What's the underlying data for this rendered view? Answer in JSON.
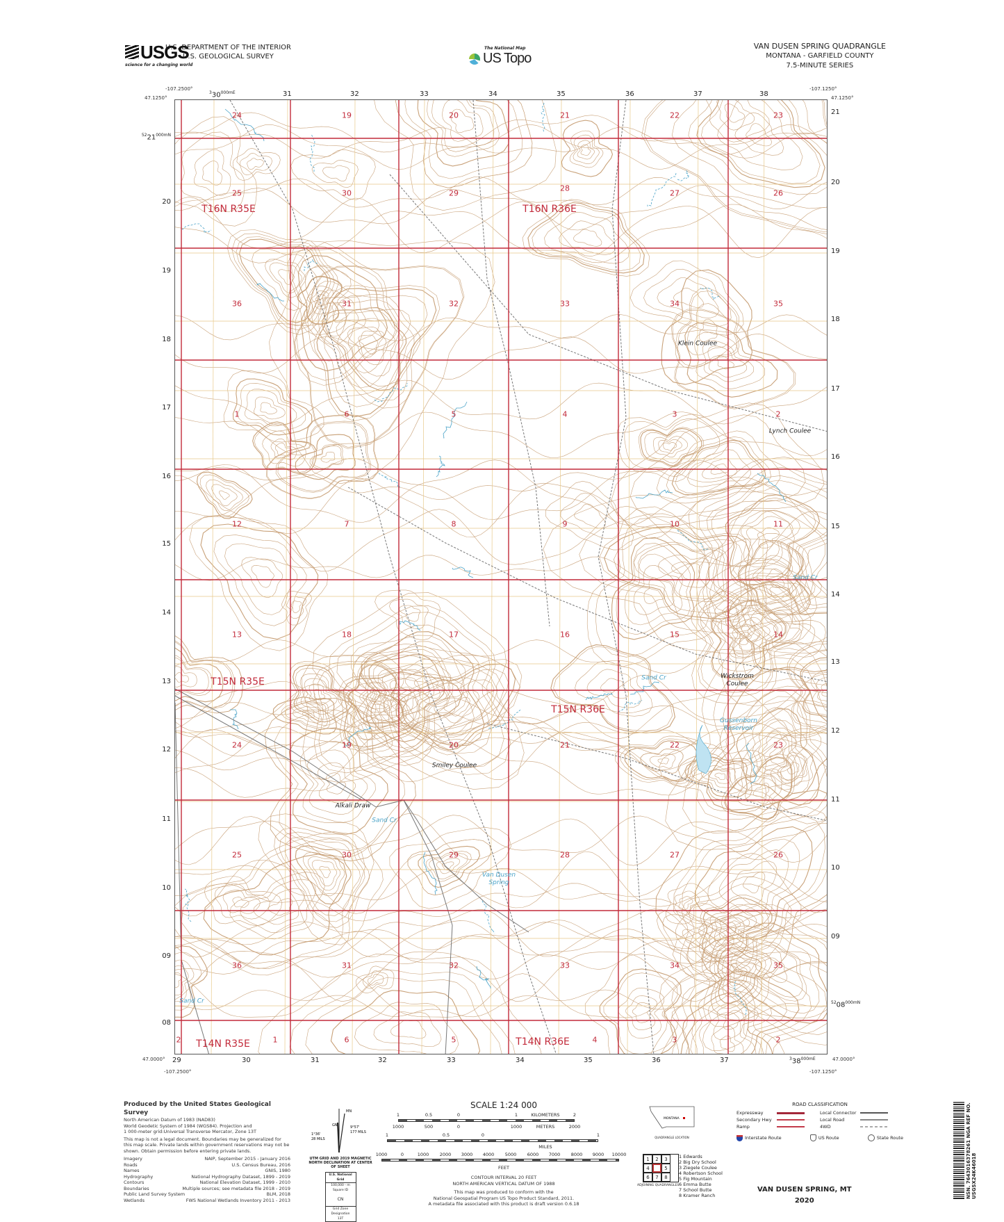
{
  "header": {
    "logo_word": "USGS",
    "logo_tagline": "science for a changing world",
    "dept_line1": "U.S. DEPARTMENT OF THE INTERIOR",
    "dept_line2": "U.S. GEOLOGICAL SURVEY",
    "national_map": "The National Map",
    "us_topo": "US Topo",
    "quad_title": "VAN DUSEN SPRING QUADRANGLE",
    "quad_state_county": "MONTANA - GARFIELD COUNTY",
    "quad_series": "7.5-MINUTE SERIES"
  },
  "corners": {
    "nw_lon": "-107.2500°",
    "nw_lat": "47.1250°",
    "ne_lon": "-107.1250°",
    "ne_lat": "47.1250°",
    "sw_lon": "-107.2500°",
    "sw_lat": "47.0000°",
    "se_lon": "-107.1250°",
    "se_lat": "47.0000°"
  },
  "grid_labels": {
    "top": [
      "30",
      "31",
      "32",
      "33",
      "34",
      "35",
      "36",
      "37",
      "38"
    ],
    "top_first_prefix": "3",
    "top_first_suffix": "000mE",
    "bottom": [
      "29",
      "30",
      "31",
      "32",
      "33",
      "34",
      "35",
      "36",
      "37",
      "38"
    ],
    "bottom_last_prefix": "3",
    "bottom_last_suffix": "000mE",
    "left": [
      "21",
      "20",
      "19",
      "18",
      "17",
      "16",
      "15",
      "14",
      "13",
      "12",
      "11",
      "10",
      "09",
      "08"
    ],
    "left_first_prefix": "52",
    "left_first_suffix": "000mN",
    "right": [
      "21",
      "20",
      "19",
      "18",
      "17",
      "16",
      "15",
      "14",
      "13",
      "12",
      "11",
      "10",
      "09",
      "08"
    ],
    "right_last_prefix": "52",
    "right_last_suffix": "000mN"
  },
  "sections": [
    [
      "24",
      "19",
      "20",
      "21",
      "22",
      "23"
    ],
    [
      "25",
      "30",
      "29",
      "28",
      "27",
      "26"
    ],
    [
      "36",
      "31",
      "32",
      "33",
      "34",
      "35"
    ],
    [
      "1",
      "6",
      "5",
      "4",
      "3",
      "2"
    ],
    [
      "12",
      "7",
      "8",
      "9",
      "10",
      "11"
    ],
    [
      "13",
      "18",
      "17",
      "16",
      "15",
      "14"
    ],
    [
      "24",
      "19",
      "20",
      "21",
      "22",
      "23"
    ],
    [
      "25",
      "30",
      "29",
      "28",
      "27",
      "26"
    ],
    [
      "36",
      "31",
      "32",
      "33",
      "34",
      "35"
    ],
    [
      "1",
      "6",
      "5",
      "4",
      "3",
      "2"
    ]
  ],
  "section_extra": "2",
  "townships": [
    "T16N R35E",
    "T16N R36E",
    "T15N R35E",
    "T15N R36E",
    "T14N R35E",
    "T14N R36E"
  ],
  "places": {
    "klein_coulee": "Klein Coulee",
    "lynch_coulee": "Lynch Coulee",
    "wickstrom_coulee": "Wickstrom Coulee",
    "smiley_coulee": "Smiley Coulee",
    "alkali_draw": "Alkali Draw",
    "sand_cr_1": "Sand Cr",
    "sand_cr_2": "Sand Cr",
    "sand_cr_3": "Sand Cr",
    "sand_cr_4": "Sand Cr",
    "reservoir": "Gussenborn Reservoir",
    "van_dusen_spring": "Van Dusen Spring"
  },
  "colors": {
    "section_lines": "#c22a3a",
    "contours": "#c9a27a",
    "utm_grid": "#e8c98a",
    "water": "#4aa3c8",
    "roads": "#777777"
  },
  "footer": {
    "produced_title": "Produced by the United States Geological Survey",
    "datum_lines": [
      "North American Datum of 1983 (NAD83)",
      "World Geodetic System of 1984 (WGS84). Projection and",
      "1 000-meter grid:Universal Transverse Mercator, Zone 13T"
    ],
    "legal": "This map is not a legal document. Boundaries may be generalized for this map scale. Private lands within government reservations may not be shown. Obtain permission before entering private lands.",
    "sources": [
      {
        "name": "Imagery",
        "source": "NAIP, September 2015 - January 2016"
      },
      {
        "name": "Roads",
        "source": "U.S. Census Bureau, 2016"
      },
      {
        "name": "Names",
        "source": "GNIS, 1980"
      },
      {
        "name": "Hydrography",
        "source": "National Hydrography Dataset, 1899 - 2019"
      },
      {
        "name": "Contours",
        "source": "National Elevation Dataset, 1999 - 2010"
      },
      {
        "name": "Boundaries",
        "source": "Multiple sources; see metadata file 2018 - 2019"
      },
      {
        "name": "Public Land Survey System",
        "source": "BLM, 2018"
      },
      {
        "name": "Wetlands",
        "source": "FWS National Wetlands Inventory 2011 - 2013"
      }
    ],
    "declination": {
      "gn_label": "GN",
      "mn_label": "MN",
      "gn_angle": "1°36'",
      "gn_mils": "28 MILS",
      "mn_angle": "9°57'",
      "mn_mils": "177 MILS",
      "caption": "UTM GRID AND 2019 MAGNETIC NORTH DECLINATION AT CENTER OF SHEET"
    },
    "usng": {
      "title": "U.S. National Grid",
      "subtitle": "100,000 - m Square ID",
      "square_id": "CN",
      "zone_label": "Grid Zone Designation",
      "zone": "13T"
    },
    "scale": {
      "title": "SCALE 1:24 000",
      "km_label": "KILOMETERS",
      "km_ticks": [
        "1",
        "0.5",
        "0",
        "1",
        "2"
      ],
      "m_label": "METERS",
      "m_ticks": [
        "1000",
        "500",
        "0",
        "1000",
        "2000"
      ],
      "mi_label": "MILES",
      "mi_ticks": [
        "1",
        "0.5",
        "0",
        "1"
      ],
      "ft_label": "FEET",
      "ft_ticks": [
        "1000",
        "0",
        "1000",
        "2000",
        "3000",
        "4000",
        "5000",
        "6000",
        "7000",
        "8000",
        "9000",
        "10000"
      ],
      "contour_interval": "CONTOUR INTERVAL 20 FEET",
      "vertical_datum": "NORTH AMERICAN VERTICAL DATUM OF 1988",
      "standard_lines": [
        "This map was produced to conform with the",
        "National Geospatial Program US Topo Product Standard, 2011.",
        "A metadata file associated with this product is draft version 0.6.18"
      ]
    },
    "location": {
      "state": "MONTANA",
      "caption": "QUADRANGLE LOCATION"
    },
    "adjoining": {
      "caption": "ADJOINING QUADRANGLES",
      "cells": [
        "1",
        "2",
        "3",
        "4",
        "",
        "5",
        "6",
        "7",
        "8"
      ],
      "names": [
        "1 Edwards",
        "2 Big Dry School",
        "3 Ziegele Coulee",
        "4 Robertson School",
        "5 Fig Mountain",
        "6 Emma Butte",
        "7 School Butte",
        "8 Kramer Ranch"
      ]
    },
    "roads": {
      "title": "ROAD CLASSIFICATION",
      "items": [
        {
          "label": "Expressway",
          "color": "#a3283a"
        },
        {
          "label": "Local Connector",
          "color": "#555555"
        },
        {
          "label": "Secondary Hwy",
          "color": "#c23a4a"
        },
        {
          "label": "Local Road",
          "color": "#888888"
        },
        {
          "label": "Ramp",
          "color": "#c23a4a"
        },
        {
          "label": "4WD",
          "color": "#aaaaaa"
        }
      ],
      "shields": [
        "Interstate Route",
        "US Route",
        "State Route"
      ]
    },
    "bottom_title": "VAN DUSEN SPRING,  MT",
    "year": "2020",
    "barcode_text": "NSN. 7643016378261 NGA REF NO. USGSX24K46018"
  }
}
